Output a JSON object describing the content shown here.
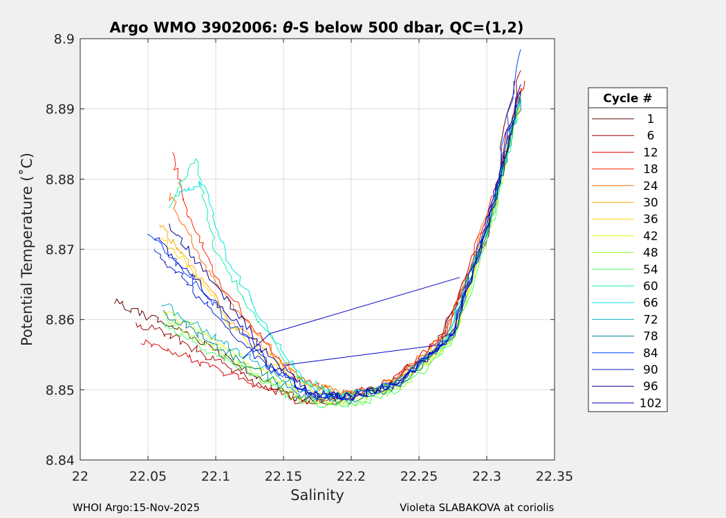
{
  "chart_data": {
    "type": "line",
    "title_prefix": "Argo WMO 3902006: ",
    "title_theta": "θ",
    "title_suffix": "-S below 500 dbar,  QC=(1,2)",
    "xlabel": "Salinity",
    "ylabel": "Potential Temperature (˚C)",
    "xlim": [
      22.0,
      22.35
    ],
    "ylim": [
      8.84,
      8.9
    ],
    "xticks": [
      22,
      22.05,
      22.1,
      22.15,
      22.2,
      22.25,
      22.3,
      22.35
    ],
    "xtick_labels": [
      "22",
      "22.05",
      "22.1",
      "22.15",
      "22.2",
      "22.25",
      "22.3",
      "22.35"
    ],
    "yticks": [
      8.84,
      8.85,
      8.86,
      8.87,
      8.88,
      8.89,
      8.9
    ],
    "ytick_labels": [
      "8.84",
      "8.85",
      "8.86",
      "8.87",
      "8.88",
      "8.89",
      "8.9"
    ],
    "grid": true,
    "legend": {
      "title": "Cycle #",
      "placement": "right-outside",
      "entries": [
        {
          "label": "1",
          "color": "#5a0000"
        },
        {
          "label": "6",
          "color": "#a00000"
        },
        {
          "label": "12",
          "color": "#dc0000"
        },
        {
          "label": "18",
          "color": "#ff2000"
        },
        {
          "label": "24",
          "color": "#ff6a00"
        },
        {
          "label": "30",
          "color": "#ffa500"
        },
        {
          "label": "36",
          "color": "#ffd800"
        },
        {
          "label": "42",
          "color": "#d8ff00"
        },
        {
          "label": "48",
          "color": "#90ff20"
        },
        {
          "label": "54",
          "color": "#40ff60"
        },
        {
          "label": "60",
          "color": "#10f0a0"
        },
        {
          "label": "66",
          "color": "#00e0e0"
        },
        {
          "label": "72",
          "color": "#00b0c0"
        },
        {
          "label": "78",
          "color": "#008090"
        },
        {
          "label": "84",
          "color": "#0040ff"
        },
        {
          "label": "90",
          "color": "#0018d0"
        },
        {
          "label": "96",
          "color": "#000090"
        },
        {
          "label": "102",
          "color": "#0000c8"
        }
      ]
    },
    "series": [
      {
        "name": "1",
        "color": "#5a0000",
        "x": [
          22.025,
          22.05,
          22.08,
          22.11,
          22.14,
          22.165,
          22.19,
          22.22,
          22.26,
          22.3,
          22.32
        ],
        "y": [
          8.8625,
          8.8605,
          8.858,
          8.8545,
          8.8505,
          8.8485,
          8.849,
          8.8505,
          8.855,
          8.872,
          8.894
        ]
      },
      {
        "name": "6",
        "color": "#a00000",
        "x": [
          22.04,
          22.07,
          22.1,
          22.13,
          22.16,
          22.19,
          22.22,
          22.26,
          22.3,
          22.325
        ],
        "y": [
          8.8595,
          8.8575,
          8.854,
          8.851,
          8.8485,
          8.8485,
          8.85,
          8.855,
          8.872,
          8.8955
        ]
      },
      {
        "name": "12",
        "color": "#dc0000",
        "x": [
          22.045,
          22.075,
          22.105,
          22.135,
          22.165,
          22.195,
          22.23,
          22.27,
          22.305,
          22.328
        ],
        "y": [
          8.857,
          8.855,
          8.8525,
          8.8505,
          8.8485,
          8.849,
          8.8515,
          8.858,
          8.877,
          8.894
        ]
      },
      {
        "name": "18",
        "color": "#ff2000",
        "x": [
          22.068,
          22.08,
          22.1,
          22.13,
          22.16,
          22.19,
          22.23,
          22.27,
          22.305,
          22.326
        ],
        "y": [
          8.8835,
          8.875,
          8.866,
          8.858,
          8.8515,
          8.8495,
          8.851,
          8.858,
          8.877,
          8.893
        ]
      },
      {
        "name": "24",
        "color": "#ff6a00",
        "x": [
          22.065,
          22.085,
          22.11,
          22.14,
          22.17,
          22.2,
          22.23,
          22.27,
          22.305,
          22.325
        ],
        "y": [
          8.878,
          8.87,
          8.8625,
          8.856,
          8.8505,
          8.8495,
          8.851,
          8.858,
          8.877,
          8.893
        ]
      },
      {
        "name": "30",
        "color": "#ffa500",
        "x": [
          22.058,
          22.08,
          22.11,
          22.14,
          22.17,
          22.2,
          22.235,
          22.275,
          22.305,
          22.325
        ],
        "y": [
          8.874,
          8.868,
          8.86,
          8.855,
          8.8505,
          8.8495,
          8.851,
          8.8585,
          8.876,
          8.892
        ]
      },
      {
        "name": "36",
        "color": "#ffd800",
        "x": [
          22.06,
          22.085,
          22.11,
          22.14,
          22.17,
          22.2,
          22.235,
          22.275,
          22.305,
          22.324
        ],
        "y": [
          8.8715,
          8.8665,
          8.8595,
          8.854,
          8.85,
          8.849,
          8.8505,
          8.8575,
          8.8755,
          8.891
        ]
      },
      {
        "name": "42",
        "color": "#d8ff00",
        "x": [
          22.06,
          22.09,
          22.12,
          22.15,
          22.175,
          22.2,
          22.235,
          22.275,
          22.305,
          22.324
        ],
        "y": [
          8.8615,
          8.858,
          8.8545,
          8.851,
          8.8485,
          8.8485,
          8.8505,
          8.8575,
          8.8755,
          8.891
        ]
      },
      {
        "name": "48",
        "color": "#90ff20",
        "x": [
          22.06,
          22.09,
          22.12,
          22.15,
          22.175,
          22.2,
          22.235,
          22.275,
          22.305,
          22.324
        ],
        "y": [
          8.8605,
          8.857,
          8.8535,
          8.85,
          8.848,
          8.848,
          8.85,
          8.857,
          8.875,
          8.8905
        ]
      },
      {
        "name": "54",
        "color": "#40ff60",
        "x": [
          22.06,
          22.09,
          22.12,
          22.15,
          22.175,
          22.2,
          22.235,
          22.275,
          22.305,
          22.324
        ],
        "y": [
          8.8595,
          8.856,
          8.853,
          8.8495,
          8.8478,
          8.8478,
          8.8498,
          8.8568,
          8.8748,
          8.8905
        ]
      },
      {
        "name": "60",
        "color": "#10f0a0",
        "x": [
          22.065,
          22.085,
          22.1,
          22.13,
          22.16,
          22.19,
          22.23,
          22.27,
          22.305,
          22.324
        ],
        "y": [
          8.8755,
          8.883,
          8.87,
          8.86,
          8.852,
          8.849,
          8.8505,
          8.857,
          8.8755,
          8.891
        ]
      },
      {
        "name": "66",
        "color": "#00e0e0",
        "x": [
          22.07,
          22.09,
          22.11,
          22.14,
          22.165,
          22.195,
          22.23,
          22.27,
          22.305,
          22.325
        ],
        "y": [
          8.878,
          8.8795,
          8.868,
          8.8585,
          8.851,
          8.849,
          8.8505,
          8.857,
          8.876,
          8.892
        ]
      },
      {
        "name": "72",
        "color": "#00b0c0",
        "x": [
          22.06,
          22.09,
          22.12,
          22.15,
          22.175,
          22.2,
          22.235,
          22.275,
          22.305,
          22.325
        ],
        "y": [
          8.8625,
          8.8585,
          8.855,
          8.8515,
          8.849,
          8.849,
          8.851,
          8.858,
          8.8765,
          8.8915
        ]
      },
      {
        "name": "78",
        "color": "#008090",
        "x": [
          22.06,
          22.09,
          22.12,
          22.15,
          22.175,
          22.2,
          22.235,
          22.275,
          22.305,
          22.325
        ],
        "y": [
          8.861,
          8.8575,
          8.854,
          8.8505,
          8.8485,
          8.8485,
          8.8505,
          8.8575,
          8.876,
          8.8915
        ]
      },
      {
        "name": "84",
        "color": "#0040ff",
        "x": [
          22.05,
          22.08,
          22.11,
          22.14,
          22.17,
          22.2,
          22.235,
          22.275,
          22.305,
          22.325
        ],
        "y": [
          8.8725,
          8.8665,
          8.8595,
          8.8535,
          8.849,
          8.849,
          8.851,
          8.858,
          8.877,
          8.8985
        ]
      },
      {
        "name": "90",
        "color": "#0018d0",
        "x": [
          22.055,
          22.08,
          22.11,
          22.14,
          22.17,
          22.2,
          22.235,
          22.275,
          22.305,
          22.325
        ],
        "y": [
          8.8695,
          8.865,
          8.8585,
          8.853,
          8.8495,
          8.849,
          8.851,
          8.858,
          8.8765,
          8.8925
        ]
      },
      {
        "name": "96",
        "color": "#000090",
        "x": [
          22.065,
          22.09,
          22.115,
          22.14,
          22.17,
          22.2,
          22.235,
          22.275,
          22.305,
          22.325
        ],
        "y": [
          8.8735,
          8.8675,
          8.861,
          8.8545,
          8.8495,
          8.849,
          8.851,
          8.858,
          8.8765,
          8.8925
        ]
      },
      {
        "name": "102",
        "color": "#0000c8",
        "x": [
          22.055,
          22.085,
          22.115,
          22.14,
          22.17,
          22.2,
          22.235,
          22.275,
          22.305,
          22.325
        ],
        "y": [
          8.8715,
          8.8655,
          8.8595,
          8.8535,
          8.8495,
          8.849,
          8.851,
          8.858,
          8.877,
          8.8935
        ]
      },
      {
        "name": "102-jump-a",
        "color": "#0000c8",
        "x": [
          22.12,
          22.14,
          22.28
        ],
        "y": [
          8.8545,
          8.858,
          8.866
        ]
      },
      {
        "name": "102-jump-b",
        "color": "#0000c8",
        "x": [
          22.15,
          22.27
        ],
        "y": [
          8.8535,
          8.8565
        ]
      }
    ]
  },
  "footer": {
    "left": "WHOI Argo:15-Nov-2025",
    "right": "Violeta SLABAKOVA at coriolis"
  }
}
